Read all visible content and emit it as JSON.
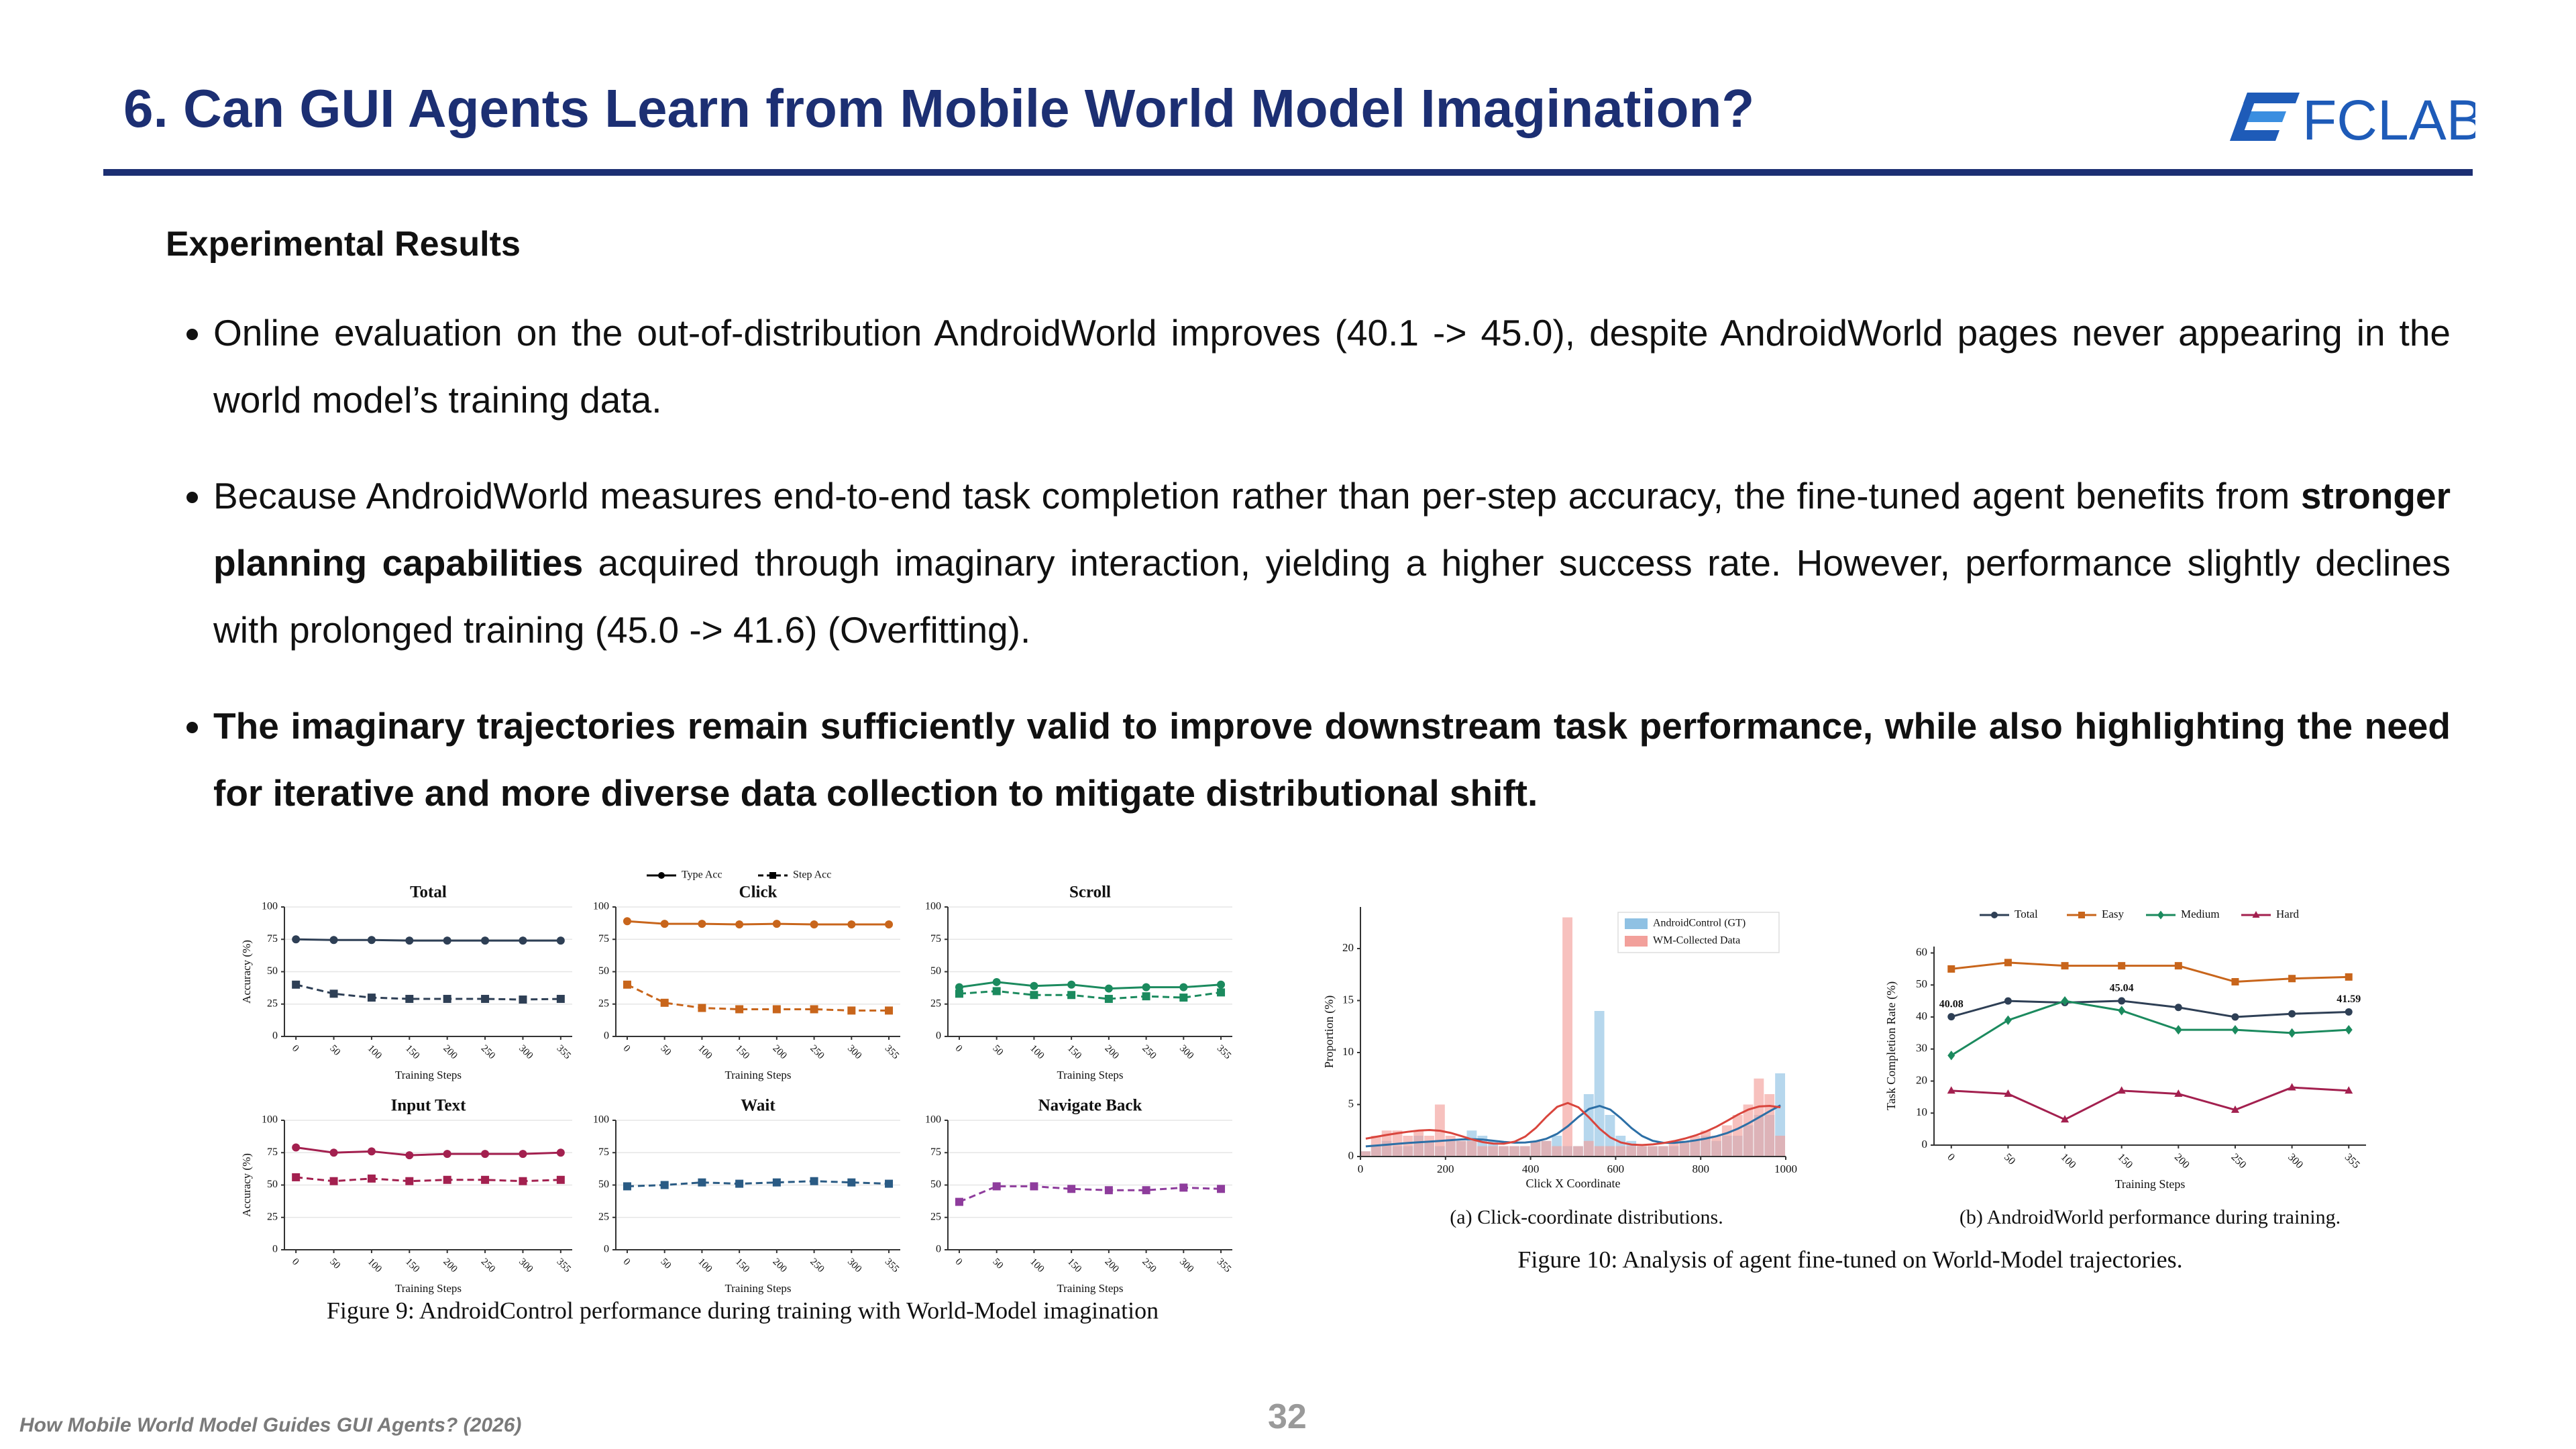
{
  "header": {
    "title": "6. Can GUI Agents Learn from Mobile World Model Imagination?",
    "logo": "FCLAB"
  },
  "section_title": "Experimental Results",
  "bullets": [
    [
      {
        "text": "Online evaluation on the out-of-distribution AndroidWorld improves (40.1 -> 45.0), despite AndroidWorld pages never appearing in the world model’s training data."
      }
    ],
    [
      {
        "text": "Because AndroidWorld measures end-to-end task completion rather than per-step accuracy, the fine-tuned agent benefits from "
      },
      {
        "text": "stronger planning capabilities",
        "bold": true
      },
      {
        "text": " acquired through imaginary interaction, yielding a higher success rate. However, performance slightly declines with prolonged training (45.0 -> 41.6) (Overfitting)."
      }
    ],
    [
      {
        "text": "The imaginary trajectories remain sufficiently valid to improve downstream task performance, while also highlighting the need for iterative and more diverse data collection to mitigate distributional shift.",
        "bold": true
      }
    ]
  ],
  "figure_captions": [
    "Figure 9: AndroidControl performance during training with World-Model imagination",
    "Figure 10: Analysis of agent fine-tuned on World-Model trajectories."
  ],
  "footer": {
    "text": "How Mobile World Model Guides GUI Agents? (2026)",
    "page": "32"
  },
  "chart_data": [
    {
      "type": "line",
      "title": "Total",
      "ylabel": "Accuracy (%)",
      "xlabel": "Training Steps",
      "grid": true,
      "categories": [
        "0",
        "50",
        "100",
        "150",
        "200",
        "250",
        "300",
        "355"
      ],
      "ylim": [
        0,
        100
      ],
      "yticks": [
        0,
        25,
        50,
        75,
        100
      ],
      "series": [
        {
          "color": "#2e3f55",
          "line": "solid",
          "marker": "circle",
          "values": [
            75,
            74.5,
            74.5,
            74,
            74,
            74,
            74,
            74
          ]
        },
        {
          "color": "#2e3f55",
          "line": "dashed",
          "marker": "square",
          "values": [
            40,
            33,
            30,
            29,
            29,
            29,
            28.5,
            29
          ]
        }
      ]
    },
    {
      "type": "line",
      "title": "Click",
      "xlabel": "Training Steps",
      "grid": true,
      "legend": "top",
      "legend_color": "#000000",
      "categories": [
        "0",
        "50",
        "100",
        "150",
        "200",
        "250",
        "300",
        "355"
      ],
      "ylim": [
        0,
        100
      ],
      "yticks": [
        0,
        25,
        50,
        75,
        100
      ],
      "series": [
        {
          "name": "Type Acc",
          "color": "#c8651b",
          "line": "solid",
          "marker": "circle",
          "values": [
            89,
            87,
            87,
            86.5,
            87,
            86.5,
            86.5,
            86.5
          ]
        },
        {
          "name": "Step Acc",
          "color": "#c8651b",
          "line": "dashed",
          "marker": "square",
          "values": [
            40,
            26,
            22,
            21,
            21,
            21,
            20,
            20
          ]
        }
      ]
    },
    {
      "type": "line",
      "title": "Scroll",
      "xlabel": "Training Steps",
      "grid": true,
      "categories": [
        "0",
        "50",
        "100",
        "150",
        "200",
        "250",
        "300",
        "355"
      ],
      "ylim": [
        0,
        100
      ],
      "yticks": [
        0,
        25,
        50,
        75,
        100
      ],
      "series": [
        {
          "color": "#1b8a5e",
          "line": "solid",
          "marker": "circle",
          "values": [
            38,
            42,
            39,
            40,
            37,
            38,
            38,
            40
          ]
        },
        {
          "color": "#1b8a5e",
          "line": "dashed",
          "marker": "square",
          "values": [
            33,
            35,
            32,
            32,
            29,
            31,
            30,
            34
          ]
        }
      ]
    },
    {
      "type": "line",
      "title": "Input Text",
      "ylabel": "Accuracy (%)",
      "xlabel": "Training Steps",
      "grid": true,
      "categories": [
        "0",
        "50",
        "100",
        "150",
        "200",
        "250",
        "300",
        "355"
      ],
      "ylim": [
        0,
        100
      ],
      "yticks": [
        0,
        25,
        50,
        75,
        100
      ],
      "series": [
        {
          "color": "#a3204f",
          "line": "solid",
          "marker": "circle",
          "values": [
            79,
            75,
            76,
            73,
            74,
            74,
            74,
            75
          ]
        },
        {
          "color": "#a3204f",
          "line": "dashed",
          "marker": "square",
          "values": [
            56,
            53,
            55,
            53,
            54,
            54,
            53,
            54
          ]
        }
      ]
    },
    {
      "type": "line",
      "title": "Wait",
      "xlabel": "Training Steps",
      "grid": true,
      "categories": [
        "0",
        "50",
        "100",
        "150",
        "200",
        "250",
        "300",
        "355"
      ],
      "ylim": [
        0,
        100
      ],
      "yticks": [
        0,
        25,
        50,
        75,
        100
      ],
      "series": [
        {
          "color": "#2a5b84",
          "line": "dashed",
          "marker": "square",
          "values": [
            49,
            50,
            52,
            51,
            52,
            53,
            52,
            51
          ]
        }
      ]
    },
    {
      "type": "line",
      "title": "Navigate Back",
      "xlabel": "Training Steps",
      "grid": true,
      "categories": [
        "0",
        "50",
        "100",
        "150",
        "200",
        "250",
        "300",
        "355"
      ],
      "ylim": [
        0,
        100
      ],
      "yticks": [
        0,
        25,
        50,
        75,
        100
      ],
      "series": [
        {
          "color": "#8e3c9c",
          "line": "dashed",
          "marker": "square",
          "values": [
            37,
            49,
            49,
            47,
            46,
            46,
            48,
            47
          ]
        }
      ]
    },
    {
      "type": "histogram",
      "caption": "(a) Click-coordinate distributions.",
      "xlabel": "Click X Coordinate",
      "ylabel": "Proportion (%)",
      "legend": "upper right",
      "bins": [
        0,
        25,
        50,
        75,
        100,
        125,
        150,
        175,
        200,
        225,
        250,
        275,
        300,
        325,
        350,
        375,
        400,
        425,
        450,
        475,
        500,
        525,
        550,
        575,
        600,
        625,
        650,
        675,
        700,
        725,
        750,
        775,
        800,
        825,
        850,
        875,
        900,
        925,
        950,
        975,
        1000
      ],
      "xlim": [
        0,
        1000
      ],
      "xticks": [
        0,
        200,
        400,
        600,
        800,
        1000
      ],
      "ylim": [
        0,
        24
      ],
      "yticks": [
        0,
        5,
        10,
        15,
        20
      ],
      "series": [
        {
          "name": "AndroidControl (GT)",
          "color": "#8fc1e3",
          "line_color": "#2c6fa6",
          "values": [
            0.5,
            1,
            1.5,
            1,
            1,
            2,
            1.5,
            1,
            1.5,
            1.5,
            2.5,
            2,
            1.5,
            1,
            1,
            1,
            1.5,
            1.5,
            2,
            1,
            1,
            6,
            14,
            4,
            2,
            1.5,
            1,
            1,
            1,
            1,
            1.5,
            1.5,
            2,
            1.5,
            2,
            2,
            3,
            4,
            4,
            8
          ]
        },
        {
          "name": "WM-Collected Data",
          "color": "#f2a09b",
          "line_color": "#d9453d",
          "values": [
            0.5,
            2,
            2.5,
            2.5,
            2,
            2.5,
            2,
            5,
            2,
            1.5,
            1.5,
            1,
            1,
            1,
            1,
            1,
            1.5,
            1.5,
            1,
            23,
            1,
            1.5,
            1,
            1,
            1,
            1,
            1,
            1,
            1,
            1.5,
            1.5,
            2,
            2.5,
            2,
            3,
            4,
            5,
            7.5,
            6,
            2
          ]
        }
      ]
    },
    {
      "type": "line",
      "caption": "(b) AndroidWorld performance during training.",
      "xlabel": "Training Steps",
      "ylabel": "Task Completion Rate (%)",
      "grid": false,
      "legend": "top",
      "categories": [
        "0",
        "50",
        "100",
        "150",
        "200",
        "250",
        "300",
        "355"
      ],
      "ylim": [
        0,
        62
      ],
      "yticks": [
        0,
        10,
        20,
        30,
        40,
        50,
        60
      ],
      "series": [
        {
          "name": "Total",
          "color": "#2e3f55",
          "line": "solid",
          "marker": "circle",
          "values": [
            40.08,
            45,
            44.5,
            45.04,
            43,
            40,
            41,
            41.59
          ],
          "value_labels": [
            "40.08",
            null,
            null,
            "45.04",
            null,
            null,
            null,
            "41.59"
          ]
        },
        {
          "name": "Easy",
          "color": "#c8651b",
          "line": "solid",
          "marker": "square",
          "values": [
            55,
            57,
            56,
            56,
            56,
            51,
            52,
            52.5
          ]
        },
        {
          "name": "Medium",
          "color": "#1b8a5e",
          "line": "solid",
          "marker": "diamond",
          "values": [
            28,
            39,
            45,
            42,
            36,
            36,
            35,
            36
          ]
        },
        {
          "name": "Hard",
          "color": "#a3204f",
          "line": "solid",
          "marker": "triangle",
          "values": [
            17,
            16,
            8,
            17,
            16,
            11,
            18,
            17
          ]
        }
      ]
    }
  ]
}
